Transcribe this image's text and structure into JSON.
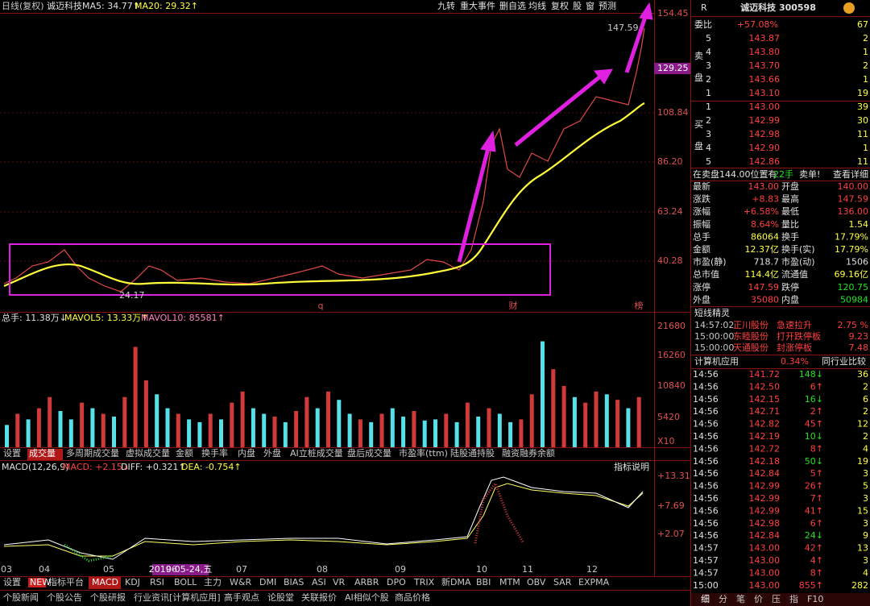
{
  "header": {
    "period": "日线(复权)",
    "name": "诚迈科技",
    "ma5": "MA5: 34.77↑",
    "ma20": "MA20: 29.32↑",
    "buttons": [
      "九转",
      "重大事件",
      "删自选",
      "均线",
      "复权",
      "股",
      "窗",
      "预测"
    ]
  },
  "price_axis": [
    "154.45",
    "129.25",
    "108.84",
    "86.20",
    "63.24",
    "40.28"
  ],
  "annotations": {
    "high": "147.59",
    "low": "24.17",
    "marks": [
      "q",
      "财",
      "榜"
    ]
  },
  "volume": {
    "total": "总手: 11.38万↓",
    "mavol5": "MAVOL5: 13.33万↑",
    "mavol10": "MAVOL10: 85581↑",
    "axis": [
      "21680",
      "16260",
      "10840",
      "5420",
      "X10"
    ],
    "ylim": [
      0,
      21680
    ],
    "values": [
      4000,
      6000,
      5000,
      7000,
      9000,
      6500,
      5000,
      8000,
      7000,
      6000,
      5500,
      9000,
      18000,
      12000,
      9500,
      7000,
      6000,
      5000,
      4500,
      6000,
      5000,
      8000,
      10000,
      7000,
      6000,
      5500,
      4500,
      6500,
      9000,
      7000,
      10000,
      8500,
      6000,
      5000,
      4500,
      6000,
      7000,
      5500,
      6500,
      4800,
      5000,
      6000,
      4500,
      8000,
      5500,
      7000,
      6000,
      4500,
      5000,
      9500,
      19000,
      14000,
      11000,
      9000,
      8000,
      10000,
      9500,
      8500,
      7000,
      9000
    ],
    "colors": [
      "#56e0e8",
      "#d23a3a",
      "#56e0e8",
      "#d23a3a",
      "#d23a3a",
      "#56e0e8",
      "#56e0e8",
      "#d23a3a",
      "#56e0e8",
      "#d23a3a",
      "#56e0e8",
      "#d23a3a",
      "#d23a3a",
      "#d23a3a",
      "#56e0e8",
      "#56e0e8",
      "#d23a3a",
      "#56e0e8",
      "#56e0e8",
      "#d23a3a",
      "#56e0e8",
      "#d23a3a",
      "#d23a3a",
      "#56e0e8",
      "#56e0e8",
      "#d23a3a",
      "#56e0e8",
      "#d23a3a",
      "#d23a3a",
      "#56e0e8",
      "#d23a3a",
      "#56e0e8",
      "#56e0e8",
      "#d23a3a",
      "#56e0e8",
      "#d23a3a",
      "#56e0e8",
      "#56e0e8",
      "#d23a3a",
      "#56e0e8",
      "#56e0e8",
      "#d23a3a",
      "#56e0e8",
      "#d23a3a",
      "#56e0e8",
      "#d23a3a",
      "#56e0e8",
      "#56e0e8",
      "#d23a3a",
      "#d23a3a",
      "#56e0e8",
      "#d23a3a",
      "#d23a3a",
      "#56e0e8",
      "#d23a3a",
      "#d23a3a",
      "#56e0e8",
      "#d23a3a",
      "#56e0e8",
      "#d23a3a"
    ]
  },
  "volume_tabs": [
    "设置",
    "成交量",
    "多周期成交量",
    "虚拟成交量",
    "金额",
    "换手率",
    "内盘",
    "外盘",
    "AI立桩成交量",
    "盘后成交量",
    "市盈率(ttm)",
    "陆股通持股",
    "融资融券余额"
  ],
  "macd": {
    "title": "MACD(12,26,9)",
    "macd": "MACD: +2.15↓",
    "diff": "DIFF: +0.321↑",
    "dea": "DEA: -0.754↑",
    "help": "指标说明",
    "axis": [
      "+13.31",
      "+7.69",
      "+2.07"
    ]
  },
  "months": [
    "03",
    "04",
    "05",
    "06",
    "07",
    "08",
    "09",
    "10",
    "11",
    "12"
  ],
  "cursor_date": "2019-05-24,五",
  "indicator_tabs": [
    "设置",
    "NEW",
    "指标平台",
    "MACD",
    "KDJ",
    "RSI",
    "BOLL",
    "主力",
    "W&R",
    "DMI",
    "BIAS",
    "ASI",
    "VR",
    "ARBR",
    "DPO",
    "TRIX",
    "新DMA",
    "BBI",
    "MTM",
    "OBV",
    "SAR",
    "EXPMA"
  ],
  "footer_tabs": [
    "个股新闻",
    "个股公告",
    "个股研报",
    "行业资讯[计算机应用]",
    "高手观点",
    "论股堂",
    "关联报价",
    "AI相似个股",
    "商品价格"
  ],
  "quote": {
    "flag": "R",
    "title": "诚迈科技 300598",
    "ratio": [
      "委比",
      "+57.08%",
      "67"
    ],
    "ask_label": [
      "卖",
      "盘"
    ],
    "bid_label": [
      "买",
      "盘"
    ],
    "asks": [
      [
        "5",
        "143.87",
        "2"
      ],
      [
        "4",
        "143.80",
        "1"
      ],
      [
        "3",
        "143.70",
        "2"
      ],
      [
        "2",
        "143.66",
        "1"
      ],
      [
        "1",
        "143.10",
        "19"
      ]
    ],
    "bids": [
      [
        "1",
        "143.00",
        "39"
      ],
      [
        "2",
        "142.99",
        "30"
      ],
      [
        "3",
        "142.98",
        "11"
      ],
      [
        "4",
        "142.90",
        "1"
      ],
      [
        "5",
        "142.86",
        "11"
      ]
    ],
    "notice": [
      "在卖盘144.00位置有",
      "22手",
      "卖单!",
      "查看详细"
    ],
    "stats": [
      [
        "最新",
        "143.00",
        "开盘",
        "140.00"
      ],
      [
        "涨跌",
        "+8.83",
        "最高",
        "147.59"
      ],
      [
        "涨幅",
        "+6.58%",
        "最低",
        "136.00"
      ],
      [
        "振幅",
        "8.64%",
        "量比",
        "1.54"
      ],
      [
        "总手",
        "86064",
        "换手",
        "17.79%"
      ],
      [
        "金额",
        "12.37亿",
        "换手(实)",
        "17.79%"
      ],
      [
        "市盈(静)",
        "718.7",
        "市盈(动)",
        "1506"
      ],
      [
        "总市值",
        "114.4亿",
        "流通值",
        "69.16亿"
      ],
      [
        "涨停",
        "147.59",
        "跌停",
        "120.75"
      ],
      [
        "外盘",
        "35080",
        "内盘",
        "50984"
      ]
    ],
    "spirit_title": "短线精灵",
    "spirit": [
      [
        "14:57:02",
        "正川股份",
        "急速拉升",
        "2.75 %"
      ],
      [
        "15:00:00",
        "东睦股份",
        "打开跌停板",
        "9.23"
      ],
      [
        "15:00:00",
        "天通股份",
        "封涨停板",
        "7.48"
      ]
    ],
    "industry": [
      "计算机应用",
      "0.34%",
      "同行业比较"
    ],
    "ticks": [
      [
        "14:56",
        "141.72",
        "148↓",
        "36"
      ],
      [
        "14:56",
        "142.50",
        "6↑",
        "2"
      ],
      [
        "14:56",
        "142.15",
        "16↓",
        "6"
      ],
      [
        "14:56",
        "142.71",
        "2↑",
        "2"
      ],
      [
        "14:56",
        "142.82",
        "45↑",
        "12"
      ],
      [
        "14:56",
        "142.19",
        "10↓",
        "2"
      ],
      [
        "14:56",
        "142.72",
        "8↑",
        "4"
      ],
      [
        "14:56",
        "142.18",
        "50↓",
        "19"
      ],
      [
        "14:56",
        "142.84",
        "5↑",
        "3"
      ],
      [
        "14:56",
        "142.99",
        "26↑",
        "5"
      ],
      [
        "14:56",
        "142.99",
        "7↑",
        "3"
      ],
      [
        "14:56",
        "142.99",
        "41↑",
        "15"
      ],
      [
        "14:56",
        "142.98",
        "6↑",
        "3"
      ],
      [
        "14:56",
        "142.84",
        "24↓",
        "9"
      ],
      [
        "14:57",
        "143.00",
        "42↑",
        "13"
      ],
      [
        "14:57",
        "143.00",
        "4↑",
        "3"
      ],
      [
        "14:57",
        "143.00",
        "8↑",
        "4"
      ],
      [
        "15:00",
        "143.00",
        "855↑",
        "282"
      ]
    ],
    "tabs": [
      "细",
      "分",
      "笔",
      "价",
      "压",
      "指",
      "F10"
    ]
  }
}
